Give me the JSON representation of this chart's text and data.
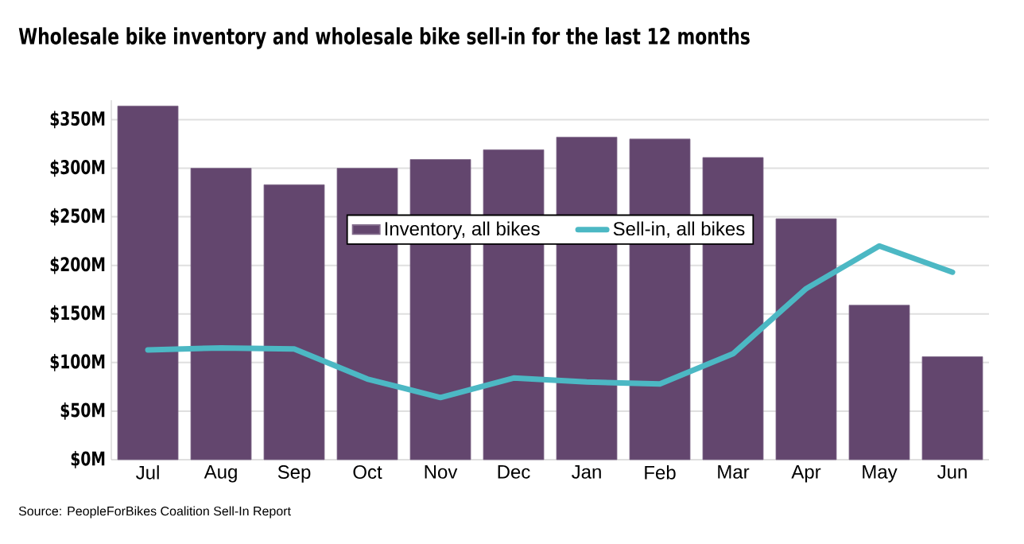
{
  "chart_data": {
    "type": "bar",
    "title": "Wholesale bike inventory and wholesale bike sell-in for the last 12 months",
    "categories": [
      "Jul",
      "Aug",
      "Sep",
      "Oct",
      "Nov",
      "Dec",
      "Jan",
      "Feb",
      "Mar",
      "Apr",
      "May",
      "Jun"
    ],
    "series": [
      {
        "name": "Inventory, all bikes",
        "type": "bar",
        "color": "#63466e",
        "values": [
          364,
          300,
          283,
          300,
          309,
          319,
          332,
          330,
          311,
          248,
          159,
          106
        ]
      },
      {
        "name": "Sell-in, all bikes",
        "type": "line",
        "color": "#4cb8c4",
        "values": [
          113,
          115,
          114,
          83,
          64,
          84,
          80,
          78,
          109,
          176,
          220,
          193
        ]
      }
    ],
    "ylim": [
      0,
      370
    ],
    "yticks": [
      {
        "value": 0,
        "label": "$0M"
      },
      {
        "value": 50,
        "label": "$50M"
      },
      {
        "value": 100,
        "label": "$100M"
      },
      {
        "value": 150,
        "label": "$150M"
      },
      {
        "value": 200,
        "label": "$200M"
      },
      {
        "value": 250,
        "label": "$250M"
      },
      {
        "value": 300,
        "label": "$300M"
      },
      {
        "value": 350,
        "label": "$350M"
      }
    ],
    "grid": "y",
    "legend": "top",
    "marker": "none",
    "line_style": "solid",
    "annotations": [
      "Source: PeopleForBikes Coalition Sell-In Report"
    ]
  }
}
